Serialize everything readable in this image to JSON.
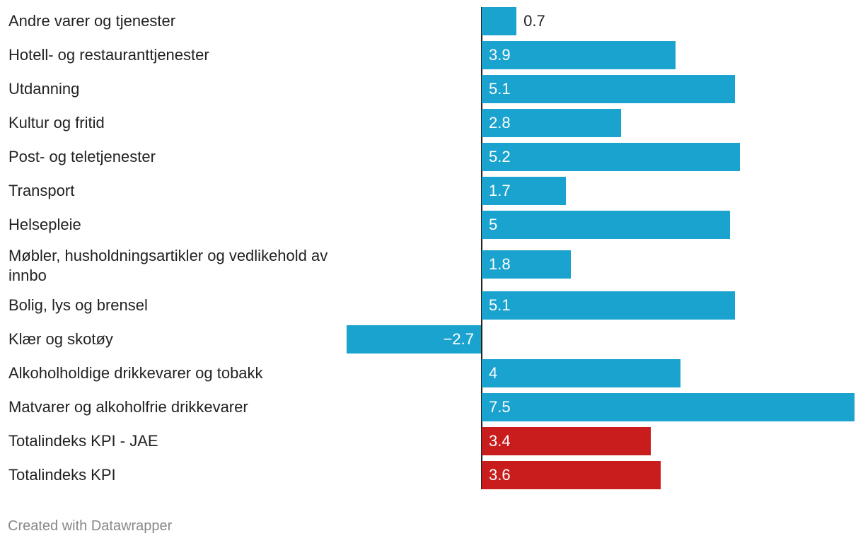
{
  "chart_data": {
    "type": "bar",
    "orientation": "horizontal",
    "categories": [
      "Andre varer og tjenester",
      "Hotell- og restauranttjenester",
      "Utdanning",
      "Kultur og fritid",
      "Post- og teletjenester",
      "Transport",
      "Helsepleie",
      "Møbler, husholdningsartikler og vedlikehold av innbo",
      "Bolig, lys og brensel",
      "Klær og skotøy",
      "Alkoholholdige drikkevarer og tobakk",
      "Matvarer og alkoholfrie drikkevarer",
      "Totalindeks KPI - JAE",
      "Totalindeks KPI"
    ],
    "values": [
      0.7,
      3.9,
      5.1,
      2.8,
      5.2,
      1.7,
      5.0,
      1.8,
      5.1,
      -2.7,
      4.0,
      7.5,
      3.4,
      3.6
    ],
    "value_labels": [
      "0.7",
      "3.9",
      "5.1",
      "2.8",
      "5.2",
      "1.7",
      "5",
      "1.8",
      "5.1",
      "−2.7",
      "4",
      "7.5",
      "3.4",
      "3.6"
    ],
    "highlight": [
      false,
      false,
      false,
      false,
      false,
      false,
      false,
      false,
      false,
      false,
      false,
      false,
      true,
      true
    ],
    "xlim": [
      -2.7,
      7.5
    ],
    "title": "",
    "xlabel": "",
    "ylabel": ""
  },
  "colors": {
    "bar": "#1ba3cf",
    "highlight": "#c91d1d",
    "zero_line": "#222222"
  },
  "footer": {
    "credit": "Created with Datawrapper"
  }
}
